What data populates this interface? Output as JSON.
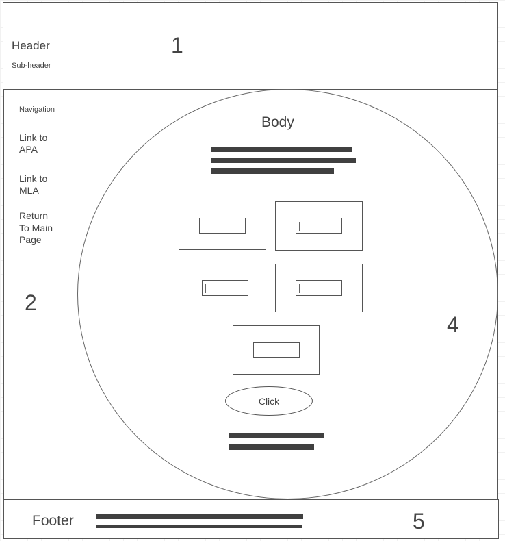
{
  "header": {
    "title": "Header",
    "subtitle": "Sub-header",
    "region_number": "1"
  },
  "navigation": {
    "title": "Navigation",
    "links": [
      {
        "line1": "Link to",
        "line2": "APA"
      },
      {
        "line1": "Link to",
        "line2": "MLA"
      },
      {
        "line1": "Return",
        "line2": "To Main",
        "line3": "Page"
      }
    ],
    "region_number": "2"
  },
  "body": {
    "title": "Body",
    "button_label": "Click",
    "region_number": "4"
  },
  "footer": {
    "title": "Footer",
    "region_number": "5"
  }
}
